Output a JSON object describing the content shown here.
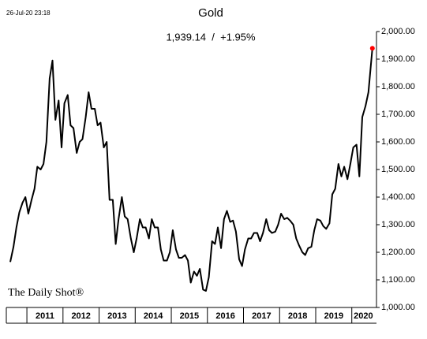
{
  "chart_data": {
    "type": "line",
    "title": "Gold",
    "subtitle": "1,939.14  /  +1.95%",
    "annotation": "26-Jul-20 23:18",
    "source": "The Daily Shot®",
    "x": [
      2010.54,
      2010.63,
      2010.71,
      2010.79,
      2010.88,
      2010.96,
      2011.04,
      2011.13,
      2011.21,
      2011.29,
      2011.38,
      2011.46,
      2011.54,
      2011.63,
      2011.71,
      2011.79,
      2011.88,
      2011.96,
      2012.04,
      2012.13,
      2012.21,
      2012.29,
      2012.38,
      2012.46,
      2012.54,
      2012.63,
      2012.71,
      2012.79,
      2012.88,
      2012.96,
      2013.04,
      2013.13,
      2013.21,
      2013.29,
      2013.38,
      2013.46,
      2013.54,
      2013.63,
      2013.71,
      2013.79,
      2013.88,
      2013.96,
      2014.04,
      2014.13,
      2014.21,
      2014.29,
      2014.38,
      2014.46,
      2014.54,
      2014.63,
      2014.71,
      2014.79,
      2014.88,
      2014.96,
      2015.04,
      2015.13,
      2015.21,
      2015.29,
      2015.38,
      2015.46,
      2015.54,
      2015.63,
      2015.71,
      2015.79,
      2015.88,
      2015.96,
      2016.04,
      2016.13,
      2016.21,
      2016.29,
      2016.38,
      2016.46,
      2016.54,
      2016.63,
      2016.71,
      2016.79,
      2016.88,
      2016.96,
      2017.04,
      2017.13,
      2017.21,
      2017.29,
      2017.38,
      2017.46,
      2017.54,
      2017.63,
      2017.71,
      2017.79,
      2017.88,
      2017.96,
      2018.04,
      2018.13,
      2018.21,
      2018.29,
      2018.38,
      2018.46,
      2018.54,
      2018.63,
      2018.71,
      2018.79,
      2018.88,
      2018.96,
      2019.04,
      2019.13,
      2019.21,
      2019.29,
      2019.38,
      2019.46,
      2019.54,
      2019.63,
      2019.71,
      2019.79,
      2019.88,
      2019.96,
      2020.04,
      2020.13,
      2020.21,
      2020.29,
      2020.38,
      2020.46,
      2020.57
    ],
    "series": [
      {
        "name": "Gold",
        "color": "#000000",
        "marker_color": "#ff0000",
        "values": [
          1165,
          1220,
          1290,
          1345,
          1380,
          1400,
          1340,
          1390,
          1430,
          1510,
          1500,
          1520,
          1600,
          1830,
          1895,
          1680,
          1750,
          1580,
          1740,
          1770,
          1660,
          1650,
          1560,
          1600,
          1610,
          1690,
          1780,
          1720,
          1720,
          1660,
          1670,
          1580,
          1600,
          1390,
          1390,
          1230,
          1320,
          1400,
          1330,
          1320,
          1250,
          1200,
          1250,
          1320,
          1290,
          1290,
          1250,
          1320,
          1290,
          1290,
          1210,
          1170,
          1170,
          1200,
          1280,
          1210,
          1180,
          1180,
          1190,
          1170,
          1090,
          1130,
          1115,
          1140,
          1065,
          1060,
          1110,
          1240,
          1230,
          1290,
          1215,
          1320,
          1350,
          1310,
          1315,
          1275,
          1175,
          1150,
          1210,
          1250,
          1250,
          1270,
          1270,
          1240,
          1270,
          1320,
          1280,
          1270,
          1275,
          1300,
          1340,
          1320,
          1325,
          1315,
          1300,
          1250,
          1225,
          1200,
          1190,
          1215,
          1220,
          1280,
          1320,
          1315,
          1295,
          1285,
          1305,
          1410,
          1430,
          1520,
          1475,
          1510,
          1465,
          1520,
          1580,
          1590,
          1475,
          1690,
          1730,
          1780,
          1939.14
        ]
      }
    ],
    "xlim": [
      2010.43,
      2020.64
    ],
    "xticks": [
      2011,
      2012,
      2013,
      2014,
      2015,
      2016,
      2017,
      2018,
      2019,
      2020
    ],
    "ylim": [
      1000,
      2000
    ],
    "yticks": [
      {
        "value": 1000,
        "label": "1,000.00"
      },
      {
        "value": 1100,
        "label": "1,100.00"
      },
      {
        "value": 1200,
        "label": "1,200.00"
      },
      {
        "value": 1300,
        "label": "1,300.00"
      },
      {
        "value": 1400,
        "label": "1,400.00"
      },
      {
        "value": 1500,
        "label": "1,500.00"
      },
      {
        "value": 1600,
        "label": "1,600.00"
      },
      {
        "value": 1700,
        "label": "1,700.00"
      },
      {
        "value": 1800,
        "label": "1,800.00"
      },
      {
        "value": 1900,
        "label": "1,900.00"
      },
      {
        "value": 2000,
        "label": "2,000.00"
      }
    ],
    "grid": false
  }
}
